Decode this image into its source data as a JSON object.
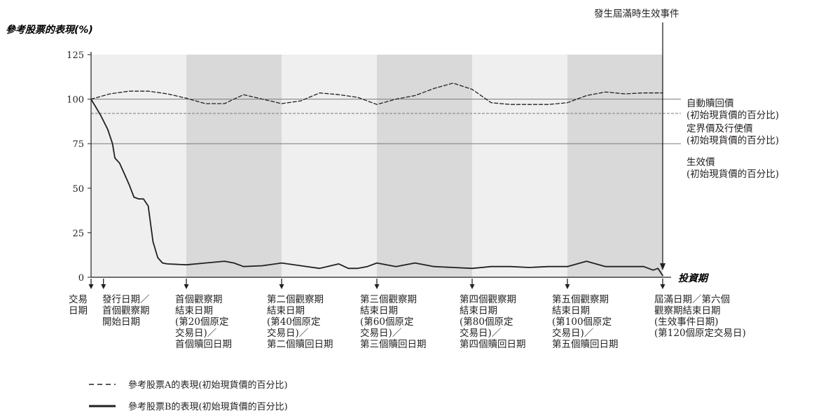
{
  "chart_data": {
    "type": "line",
    "ylabel": "參考股票的表現(%)",
    "xlabel": "投資期",
    "ylim": [
      0,
      125
    ],
    "yticks": [
      "0",
      "25",
      "50",
      "75",
      "100",
      "125"
    ],
    "x_milestones": [
      {
        "day": 0,
        "lines": [
          "交易",
          "日期"
        ]
      },
      {
        "day": 2.6,
        "lines": [
          "發行日期／",
          "首個觀察期",
          "開始日期"
        ]
      },
      {
        "day": 20,
        "lines": [
          "首個觀察期",
          "結束日期",
          "(第20個原定",
          "交易日)／",
          "首個贖回日期"
        ]
      },
      {
        "day": 40,
        "lines": [
          "第二個觀察期",
          "結束日期",
          "(第40個原定",
          "交易日)／",
          "第二個贖回日期"
        ]
      },
      {
        "day": 60,
        "lines": [
          "第三個觀察期",
          "結束日期",
          "(第60個原定",
          "交易日)／",
          "第三個贖回日期"
        ]
      },
      {
        "day": 80,
        "lines": [
          "第四個觀察期",
          "結束日期",
          "(第80個原定",
          "交易日)／",
          "第四個贖回日期"
        ]
      },
      {
        "day": 100,
        "lines": [
          "第五個觀察期",
          "結束日期",
          "(第100個原定",
          "交易日)／",
          "第五個贖回日期"
        ]
      },
      {
        "day": 120,
        "lines": [
          "屆滿日期／第六個",
          "觀察期結束日期",
          "(生效事件日期)",
          "(第120個原定交易日)"
        ]
      }
    ],
    "reference_levels": [
      {
        "value": 100,
        "lines": [
          "自動贖回價",
          "(初始現貨價的百分比)"
        ],
        "style": "solid"
      },
      {
        "value": 92,
        "lines": [
          "定界價及行使價",
          "(初始現貨價的百分比)"
        ],
        "style": "dashed"
      },
      {
        "value": 75,
        "lines": [
          "生效價",
          "(初始現貨價的百分比)"
        ],
        "style": "solid"
      }
    ],
    "annotation": "發生屆滿時生效事件",
    "series": [
      {
        "name": "參考股票A的表現(初始現貨價的百分比)",
        "style": "dashed",
        "x": [
          0,
          4,
          8,
          12,
          16,
          20,
          24,
          28,
          32,
          36,
          40,
          44,
          48,
          52,
          56,
          60,
          64,
          68,
          72,
          76,
          80,
          84,
          88,
          92,
          96,
          100,
          104,
          108,
          112,
          116,
          120
        ],
        "y": [
          100,
          103,
          104.5,
          104.5,
          103,
          100.5,
          97.5,
          97.5,
          102.5,
          100,
          97.5,
          99,
          103.5,
          102.5,
          101,
          97,
          100,
          102,
          106,
          109,
          105.5,
          98,
          97,
          97,
          97,
          98,
          102,
          104,
          103,
          103.5,
          103.5
        ]
      },
      {
        "name": "參考股票B的表現(初始現貨價的百分比)",
        "style": "solid",
        "x": [
          0,
          2,
          3.5,
          4.5,
          5,
          6,
          7,
          8,
          9,
          10,
          11,
          12,
          13,
          14,
          15,
          16,
          20,
          24,
          28,
          30,
          32,
          36,
          40,
          44,
          48,
          52,
          54,
          56,
          58,
          60,
          64,
          68,
          72,
          76,
          80,
          84,
          88,
          92,
          96,
          100,
          104,
          108,
          112,
          116,
          118,
          119,
          120
        ],
        "y": [
          100,
          91,
          83,
          75,
          67,
          64,
          58,
          52,
          45,
          44,
          44,
          40,
          20,
          11,
          8,
          7.5,
          7,
          8,
          9,
          8,
          6,
          6.5,
          8,
          6.5,
          5,
          7.5,
          5,
          5,
          6,
          8,
          6,
          8,
          6,
          5.5,
          5,
          6,
          6,
          5.5,
          6,
          6,
          9,
          6,
          6,
          6,
          4,
          5,
          1
        ]
      }
    ],
    "colors": {
      "band_light": "#efefef",
      "band_dark": "#d9d9da",
      "line": "#231f20",
      "ref_line": "#7a7a7a"
    }
  }
}
